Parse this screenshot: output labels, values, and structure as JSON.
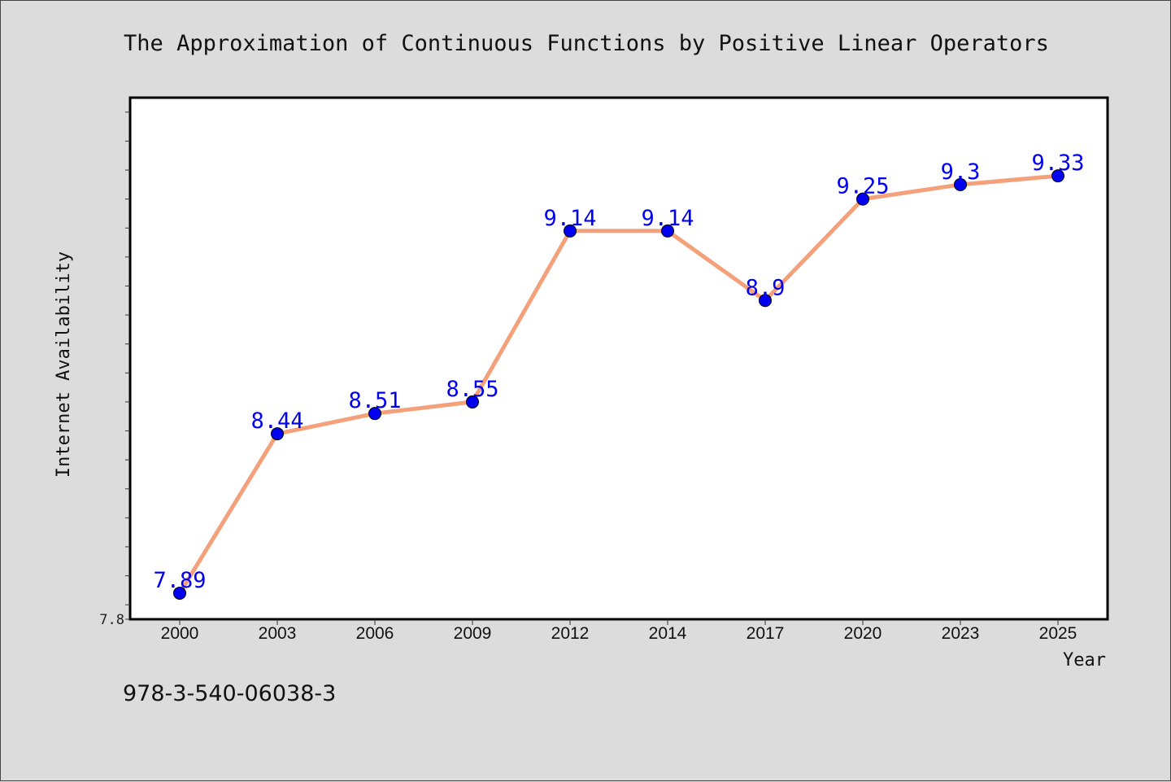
{
  "chart_data": {
    "type": "line",
    "title": "The Approximation of Continuous Functions by Positive Linear Operators",
    "xlabel": "Year",
    "ylabel": "Internet Availability",
    "categories": [
      "2000",
      "2003",
      "2006",
      "2009",
      "2012",
      "2014",
      "2017",
      "2020",
      "2023",
      "2025"
    ],
    "series": [
      {
        "values": [
          7.89,
          8.44,
          8.51,
          8.55,
          9.14,
          9.14,
          8.9,
          9.25,
          9.3,
          9.33
        ],
        "labels": [
          "7.89",
          "8.44",
          "8.51",
          "8.55",
          "9.14",
          "9.14",
          "8.9",
          "9.25",
          "9.3",
          "9.33"
        ]
      }
    ],
    "ylim": [
      7.8,
      9.6
    ],
    "ytick_labels": [
      "7.8"
    ],
    "grid": false,
    "colors": {
      "line": "#f4a07a",
      "marker": "#0000ee",
      "data_label": "#0000ee",
      "plot_background": "#ffffff",
      "figure_background": "#dcdcdc"
    }
  },
  "footer": {
    "caption": "978-3-540-06038-3"
  }
}
